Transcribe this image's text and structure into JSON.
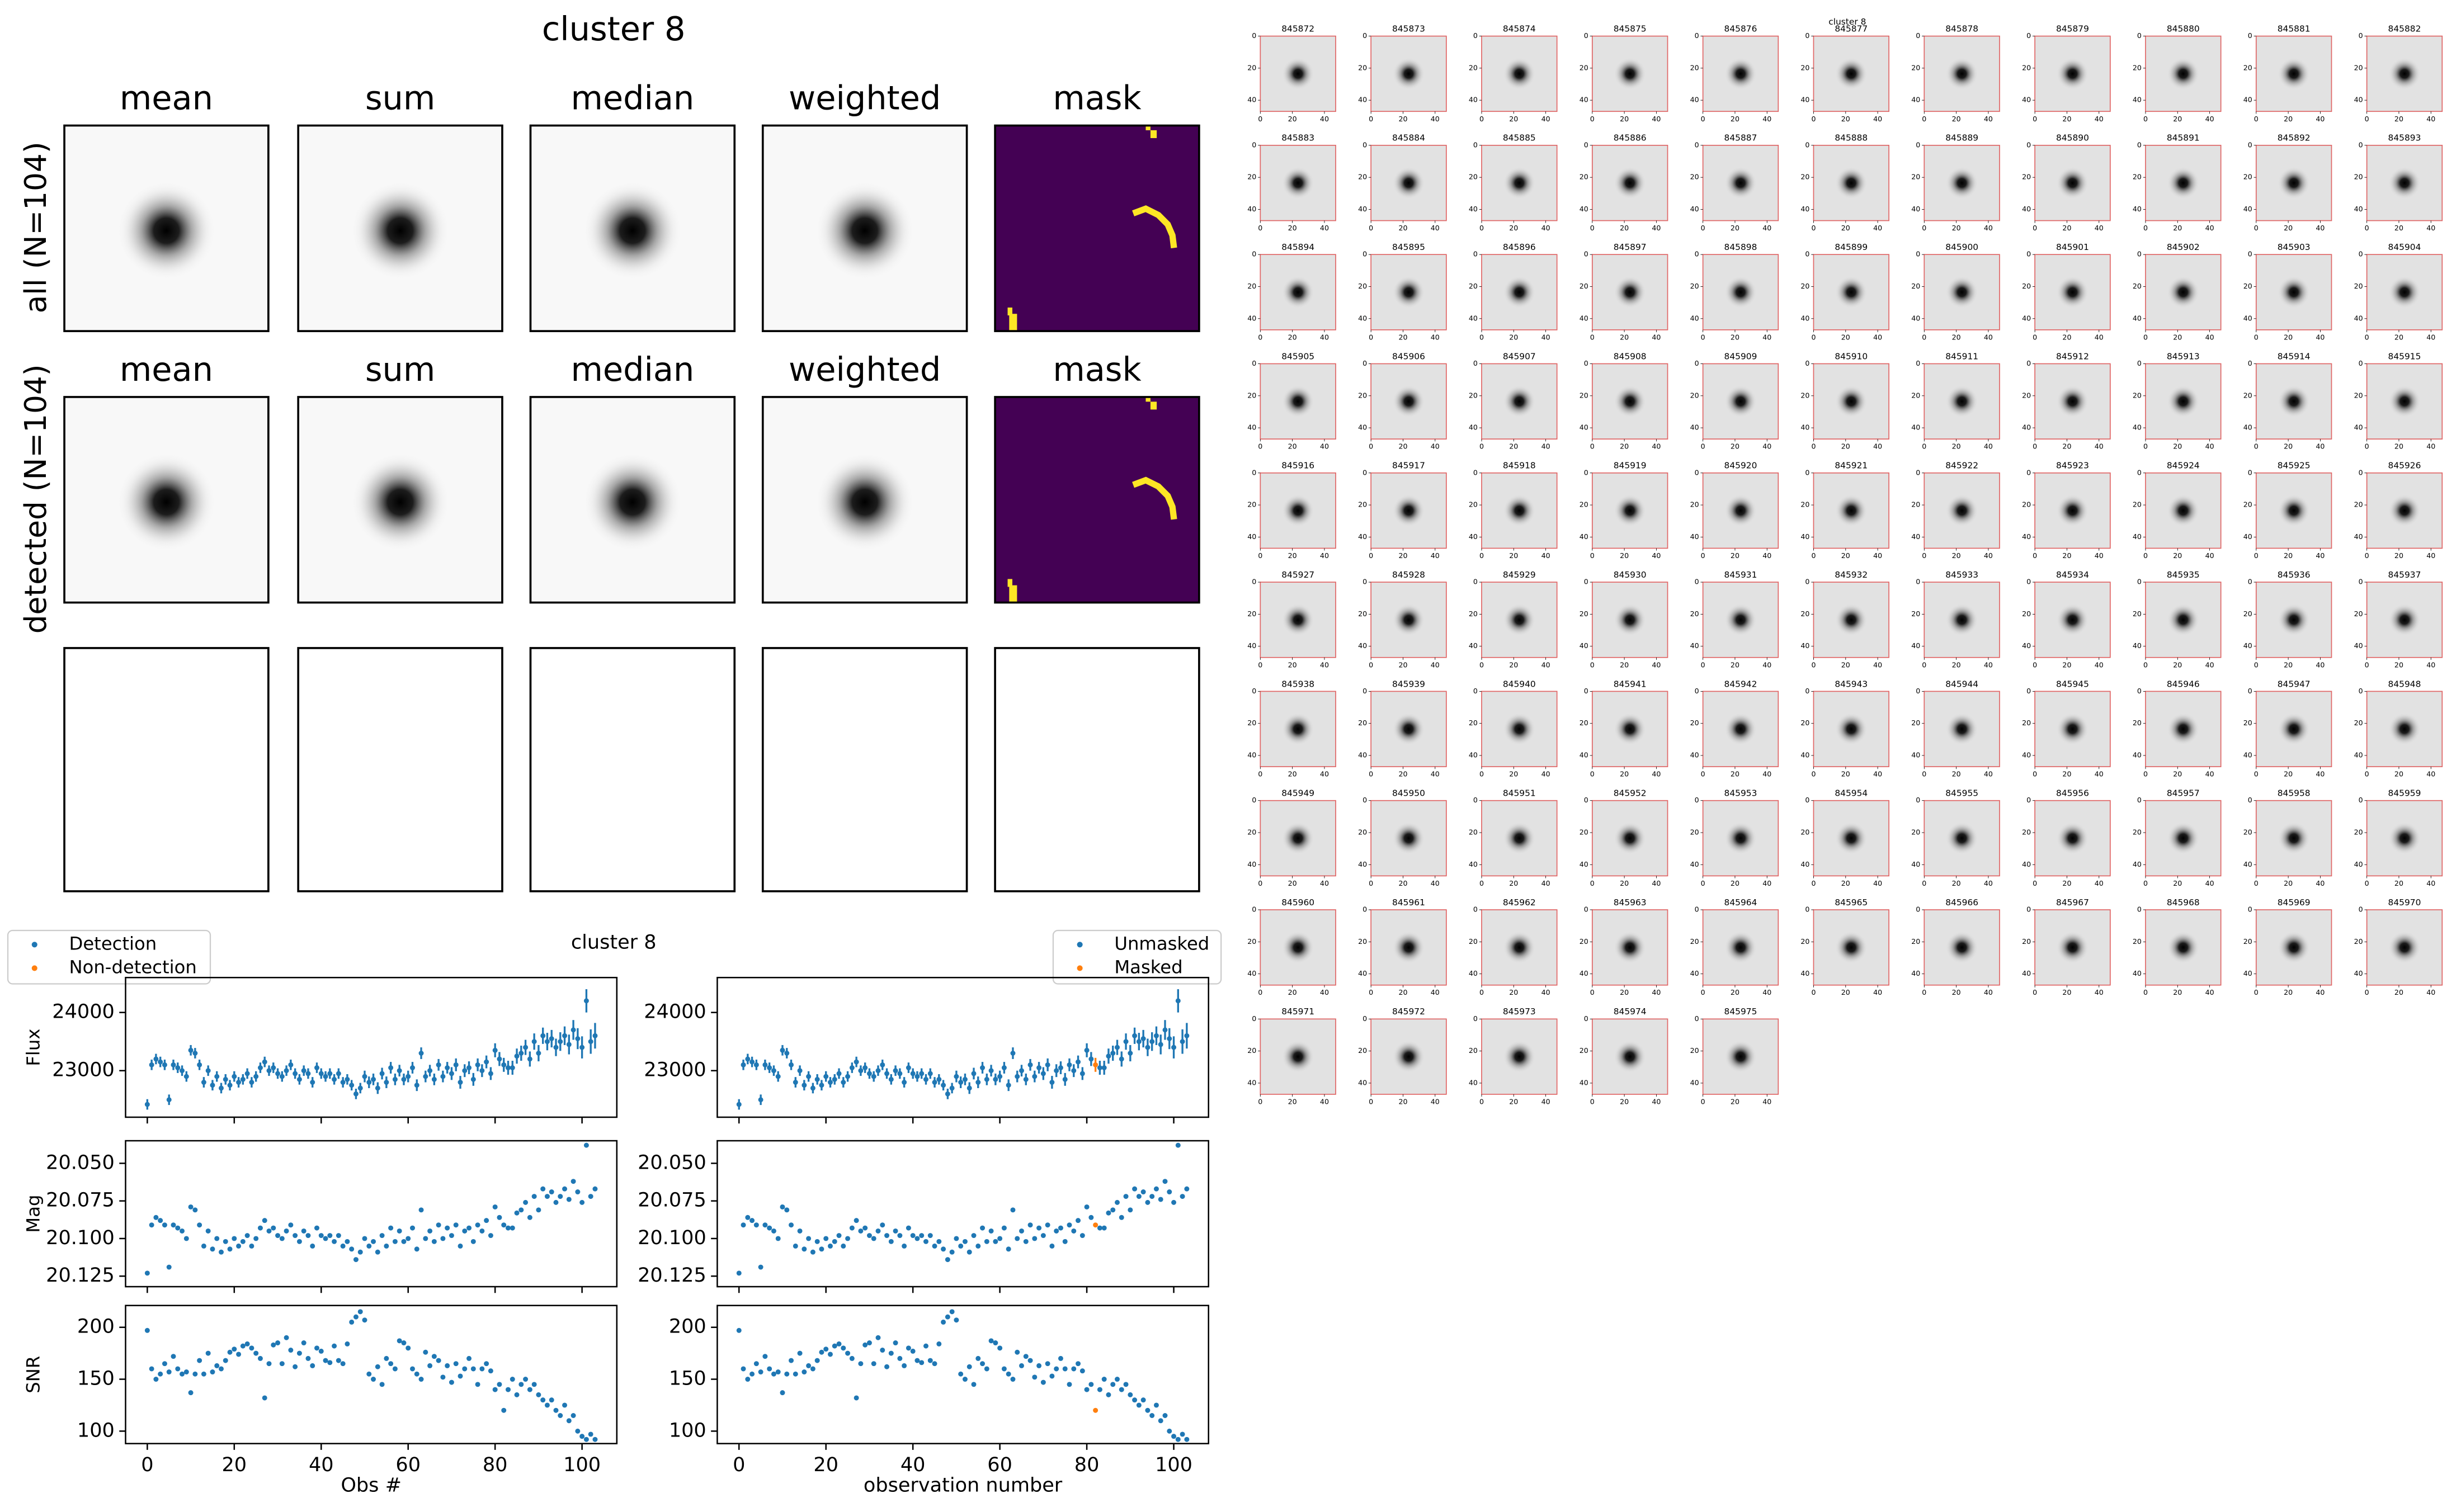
{
  "stamp_grid": {
    "title": "cluster 8",
    "columns": [
      "mean",
      "sum",
      "median",
      "weighted",
      "mask"
    ],
    "rows": [
      "all (N=104)",
      "detected (N=104)"
    ]
  },
  "chart_data": {
    "type": "scatter",
    "title": "cluster 8",
    "xlabels": [
      "Obs #",
      "observation number"
    ],
    "legends": [
      [
        {
          "name": "Detection",
          "color": "#1f77b4"
        },
        {
          "name": "Non-detection",
          "color": "#ff7f0e"
        }
      ],
      [
        {
          "name": "Unmasked",
          "color": "#1f77b4"
        },
        {
          "name": "Masked",
          "color": "#ff7f0e"
        }
      ]
    ],
    "masked": [
      82
    ],
    "xlim": [
      -5,
      108
    ],
    "xticks": [
      0,
      20,
      40,
      60,
      80,
      100
    ],
    "x": [
      0,
      1,
      2,
      3,
      4,
      5,
      6,
      7,
      8,
      9,
      10,
      11,
      12,
      13,
      14,
      15,
      16,
      17,
      18,
      19,
      20,
      21,
      22,
      23,
      24,
      25,
      26,
      27,
      28,
      29,
      30,
      31,
      32,
      33,
      34,
      35,
      36,
      37,
      38,
      39,
      40,
      41,
      42,
      43,
      44,
      45,
      46,
      47,
      48,
      49,
      50,
      51,
      52,
      53,
      54,
      55,
      56,
      57,
      58,
      59,
      60,
      61,
      62,
      63,
      64,
      65,
      66,
      67,
      68,
      69,
      70,
      71,
      72,
      73,
      74,
      75,
      76,
      77,
      78,
      79,
      80,
      81,
      82,
      83,
      84,
      85,
      86,
      87,
      88,
      89,
      90,
      91,
      92,
      93,
      94,
      95,
      96,
      97,
      98,
      99,
      100,
      101,
      102,
      103
    ],
    "panels": [
      {
        "ylabel": "Flux",
        "ylim": [
          22200,
          24600
        ],
        "yticks": [
          23000,
          24000
        ],
        "values": [
          22420,
          23100,
          23200,
          23150,
          23100,
          22500,
          23100,
          23050,
          23000,
          22900,
          23350,
          23300,
          23100,
          22800,
          23000,
          22750,
          22900,
          22700,
          22850,
          22750,
          22900,
          22800,
          22850,
          22950,
          22800,
          22900,
          23050,
          23150,
          23000,
          23050,
          22950,
          22900,
          23000,
          23100,
          22950,
          22850,
          23000,
          22950,
          22800,
          23050,
          22950,
          22900,
          22950,
          22850,
          22950,
          22800,
          22850,
          22750,
          22600,
          22700,
          22900,
          22800,
          22850,
          22700,
          22950,
          22800,
          23050,
          22850,
          23000,
          22850,
          22900,
          23050,
          22750,
          23300,
          22900,
          23000,
          22850,
          23100,
          22900,
          23050,
          22950,
          23100,
          22800,
          23000,
          23050,
          22850,
          23100,
          23000,
          23150,
          22950,
          23350,
          23200,
          23100,
          23050,
          23050,
          23250,
          23300,
          23400,
          23200,
          23500,
          23300,
          23600,
          23500,
          23550,
          23400,
          23500,
          23600,
          23450,
          23700,
          23550,
          23400,
          24200,
          23500,
          23600
        ],
        "errors": [
          90,
          90,
          90,
          90,
          90,
          90,
          90,
          90,
          90,
          90,
          90,
          90,
          90,
          90,
          90,
          90,
          90,
          90,
          90,
          90,
          90,
          90,
          90,
          90,
          90,
          90,
          90,
          90,
          90,
          90,
          90,
          90,
          90,
          90,
          90,
          90,
          90,
          90,
          90,
          90,
          90,
          90,
          90,
          90,
          90,
          90,
          90,
          90,
          90,
          90,
          100,
          100,
          100,
          100,
          100,
          100,
          100,
          100,
          100,
          100,
          100,
          100,
          100,
          100,
          100,
          100,
          100,
          100,
          100,
          100,
          110,
          110,
          110,
          110,
          110,
          110,
          110,
          110,
          110,
          110,
          120,
          120,
          120,
          120,
          120,
          130,
          130,
          130,
          130,
          140,
          140,
          140,
          150,
          150,
          150,
          160,
          160,
          170,
          170,
          180,
          190,
          200,
          210,
          220
        ]
      },
      {
        "ylabel": "Mag",
        "ylim": [
          20.132,
          20.035
        ],
        "yticks": [
          {
            "value": 20.05,
            "label": "20.050"
          },
          {
            "value": 20.075,
            "label": "20.075"
          },
          {
            "value": 20.1,
            "label": "20.100"
          },
          {
            "value": 20.125,
            "label": "20.125"
          }
        ],
        "values": [
          20.123,
          20.091,
          20.086,
          20.088,
          20.091,
          20.119,
          20.091,
          20.093,
          20.095,
          20.1,
          20.079,
          20.081,
          20.091,
          20.105,
          20.095,
          20.107,
          20.1,
          20.109,
          20.102,
          20.107,
          20.1,
          20.105,
          20.102,
          20.098,
          20.105,
          20.1,
          20.093,
          20.088,
          20.095,
          20.093,
          20.098,
          20.1,
          20.095,
          20.091,
          20.098,
          20.102,
          20.095,
          20.098,
          20.105,
          20.093,
          20.098,
          20.1,
          20.098,
          20.102,
          20.098,
          20.105,
          20.102,
          20.107,
          20.114,
          20.109,
          20.1,
          20.105,
          20.102,
          20.109,
          20.098,
          20.105,
          20.093,
          20.102,
          20.095,
          20.102,
          20.1,
          20.093,
          20.107,
          20.081,
          20.1,
          20.095,
          20.102,
          20.091,
          20.1,
          20.093,
          20.098,
          20.091,
          20.105,
          20.095,
          20.093,
          20.102,
          20.091,
          20.095,
          20.088,
          20.098,
          20.079,
          20.086,
          20.091,
          20.093,
          20.093,
          20.083,
          20.081,
          20.076,
          20.086,
          20.072,
          20.081,
          20.067,
          20.072,
          20.069,
          20.076,
          20.072,
          20.067,
          20.074,
          20.062,
          20.069,
          20.076,
          20.038,
          20.072,
          20.067
        ]
      },
      {
        "ylabel": "SNR",
        "ylim": [
          88,
          221
        ],
        "yticks": [
          100,
          150,
          200
        ],
        "values": [
          197,
          160,
          150,
          155,
          165,
          157,
          172,
          160,
          155,
          157,
          137,
          155,
          168,
          155,
          175,
          157,
          163,
          160,
          168,
          176,
          179,
          174,
          182,
          184,
          180,
          175,
          170,
          132,
          165,
          183,
          185,
          165,
          190,
          178,
          162,
          175,
          185,
          170,
          163,
          180,
          177,
          168,
          166,
          182,
          168,
          165,
          184,
          205,
          210,
          215,
          207,
          155,
          150,
          162,
          145,
          170,
          165,
          160,
          187,
          185,
          180,
          160,
          155,
          150,
          176,
          163,
          172,
          168,
          152,
          163,
          147,
          165,
          153,
          160,
          170,
          160,
          145,
          160,
          165,
          158,
          140,
          145,
          120,
          140,
          150,
          135,
          145,
          150,
          140,
          145,
          135,
          130,
          125,
          130,
          120,
          115,
          125,
          110,
          115,
          100,
          95,
          92,
          97,
          92
        ]
      }
    ]
  },
  "thumbnails": {
    "title": "cluster 8",
    "ticks": [
      0,
      20,
      40
    ],
    "lim": [
      0,
      47
    ],
    "labels": [
      "845872",
      "845873",
      "845874",
      "845875",
      "845876",
      "845877",
      "845878",
      "845879",
      "845880",
      "845881",
      "845882",
      "845883",
      "845884",
      "845885",
      "845886",
      "845887",
      "845888",
      "845889",
      "845890",
      "845891",
      "845892",
      "845893",
      "845894",
      "845895",
      "845896",
      "845897",
      "845898",
      "845899",
      "845900",
      "845901",
      "845902",
      "845903",
      "845904",
      "845905",
      "845906",
      "845907",
      "845908",
      "845909",
      "845910",
      "845911",
      "845912",
      "845913",
      "845914",
      "845915",
      "845916",
      "845917",
      "845918",
      "845919",
      "845920",
      "845921",
      "845922",
      "845923",
      "845924",
      "845925",
      "845926",
      "845927",
      "845928",
      "845929",
      "845930",
      "845931",
      "845932",
      "845933",
      "845934",
      "845935",
      "845936",
      "845937",
      "845938",
      "845939",
      "845940",
      "845941",
      "845942",
      "845943",
      "845944",
      "845945",
      "845946",
      "845947",
      "845948",
      "845949",
      "845950",
      "845951",
      "845952",
      "845953",
      "845954",
      "845955",
      "845956",
      "845957",
      "845958",
      "845959",
      "845960",
      "845961",
      "845962",
      "845963",
      "845964",
      "845965",
      "845966",
      "845967",
      "845968",
      "845969",
      "845970",
      "845971",
      "845972",
      "845973",
      "845974",
      "845975"
    ]
  }
}
